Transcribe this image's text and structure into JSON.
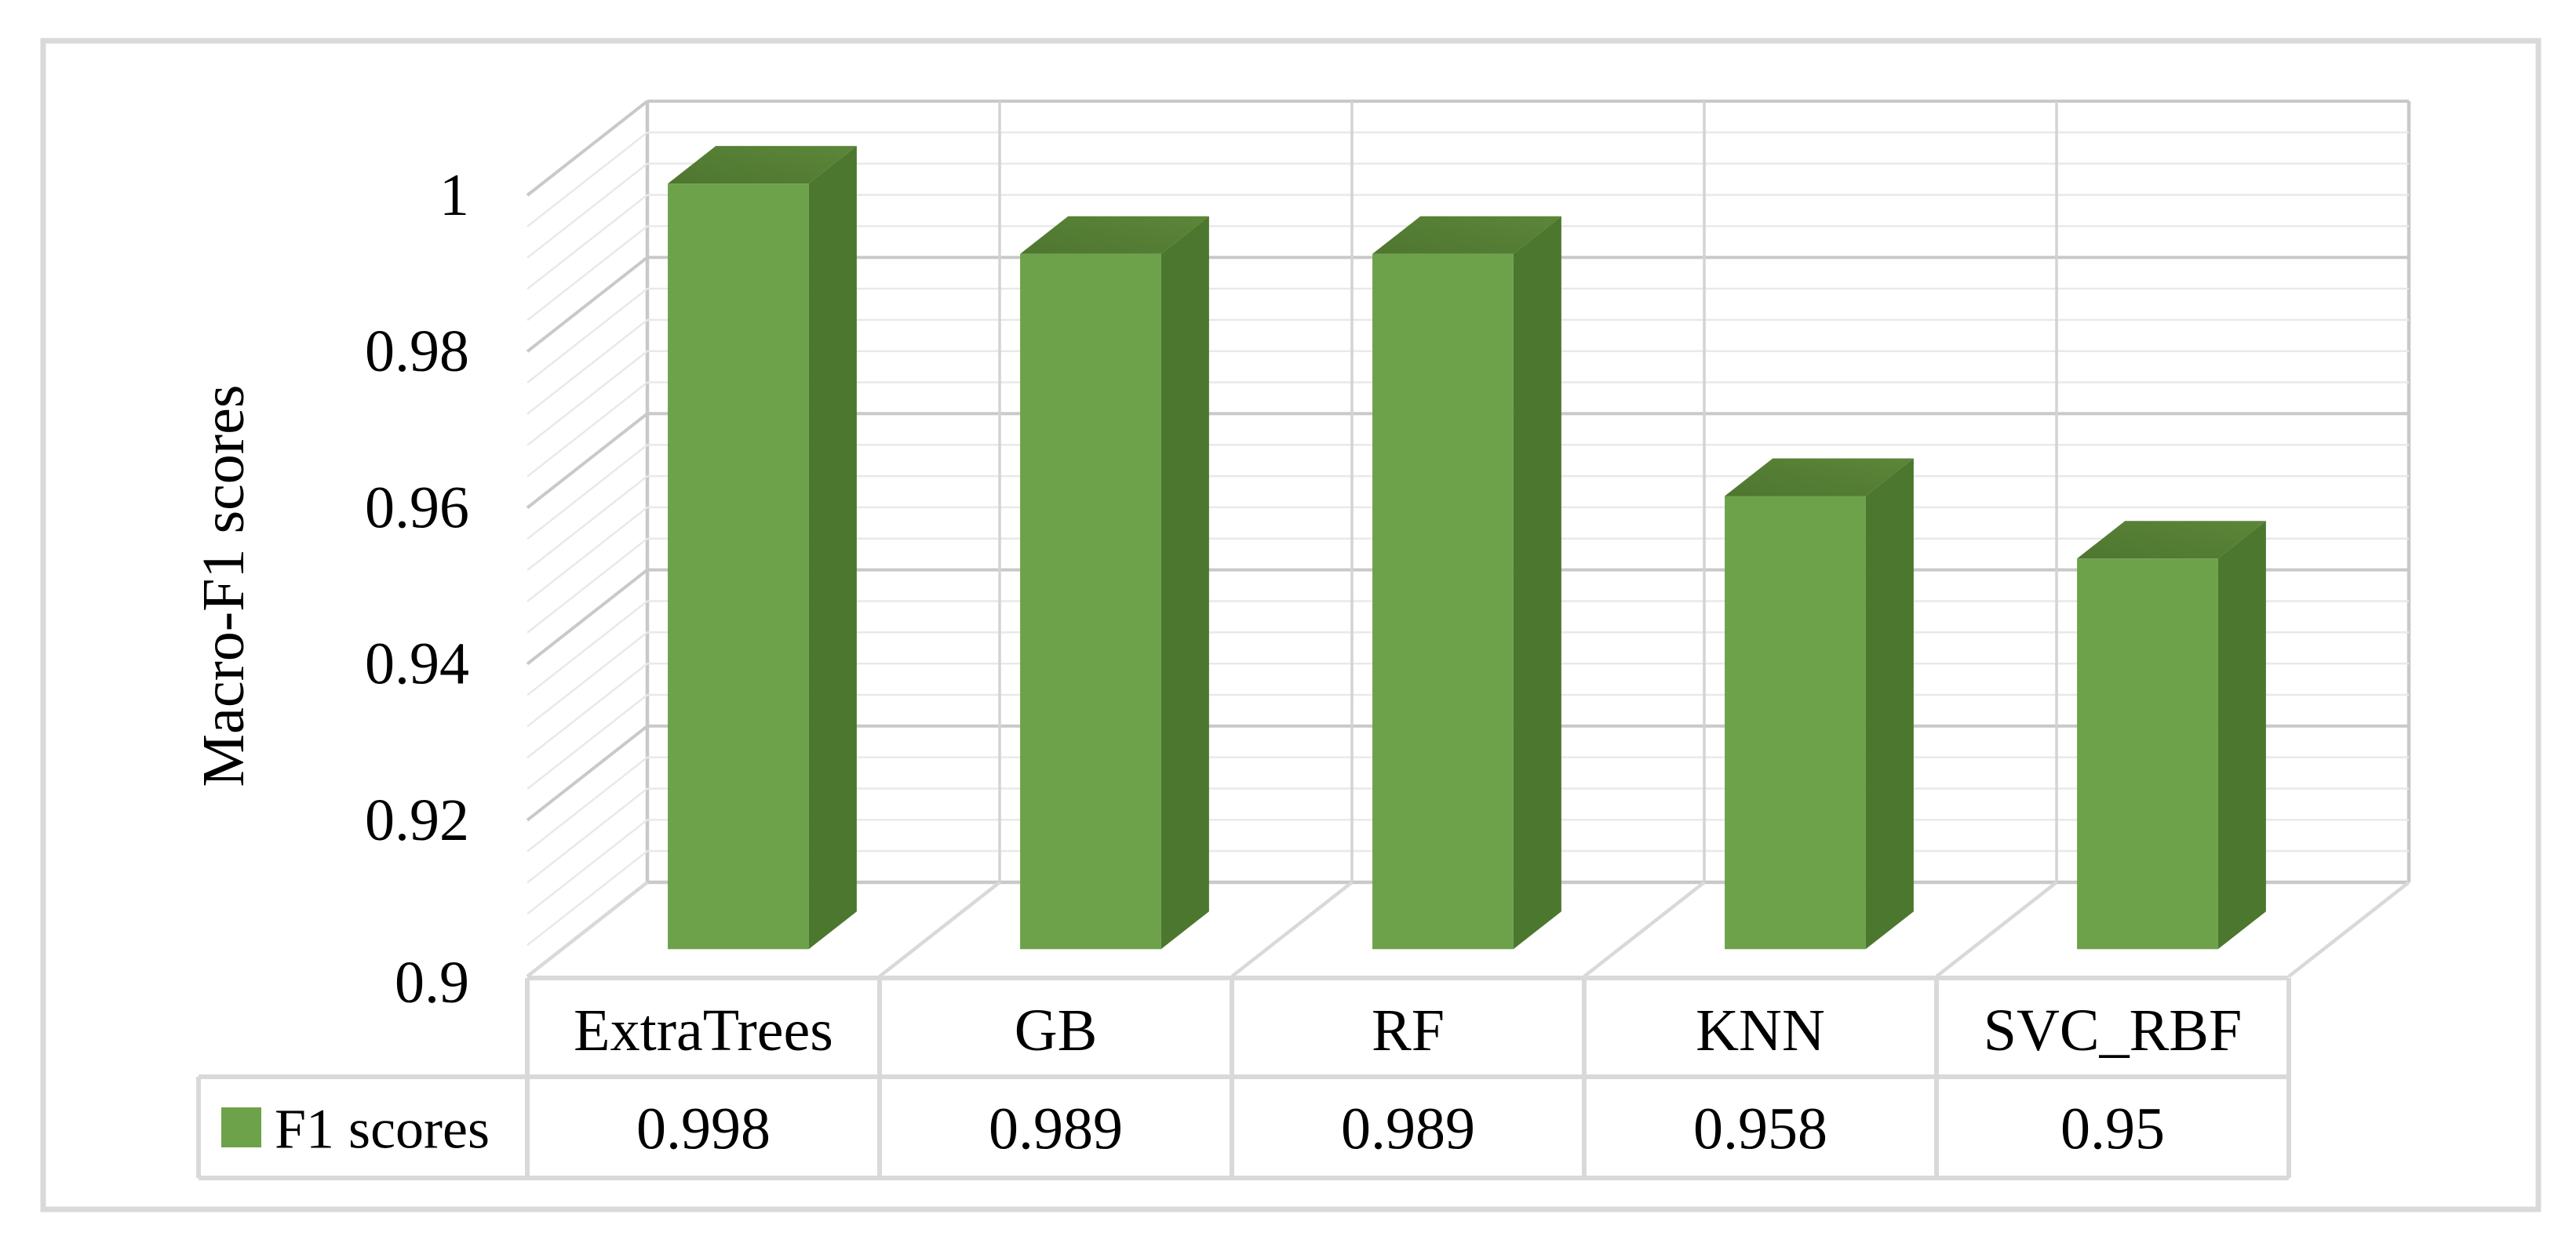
{
  "figure": {
    "background": "#FFFFFF",
    "border_color": "#D9D9D9"
  },
  "chart_data": {
    "type": "bar",
    "variant": "3d-column",
    "title": "",
    "categories": [
      "ExtraTrees",
      "GB",
      "RF",
      "KNN",
      "SVC_RBF"
    ],
    "series": [
      {
        "name": "F1 scores",
        "values": [
          0.998,
          0.989,
          0.989,
          0.958,
          0.95
        ]
      }
    ],
    "value_labels": [
      "0.998",
      "0.989",
      "0.989",
      "0.958",
      "0.95"
    ],
    "xlabel": "",
    "ylabel": "Macro-F1 scores",
    "ylim": [
      0.9,
      1.0
    ],
    "y_major_unit": 0.02,
    "y_minor_unit": 0.004,
    "ytick_labels": [
      "1",
      "0.98",
      "0.96",
      "0.94",
      "0.92",
      "0.9"
    ],
    "legend": {
      "label": "F1 scores",
      "position": "data-table-left"
    },
    "grid": true,
    "data_table_shown": true,
    "colors": {
      "bar_front": "#6DA24B",
      "bar_side": "#4C772E",
      "bar_top": "#567E35",
      "legend_swatch": "#6DA24B",
      "gridline_major": "#C9C9C9",
      "gridline_minor": "#E9E9E9",
      "wall_edge": "#C9C9C9",
      "table_border": "#D9D9D9",
      "text": "#000000"
    }
  }
}
